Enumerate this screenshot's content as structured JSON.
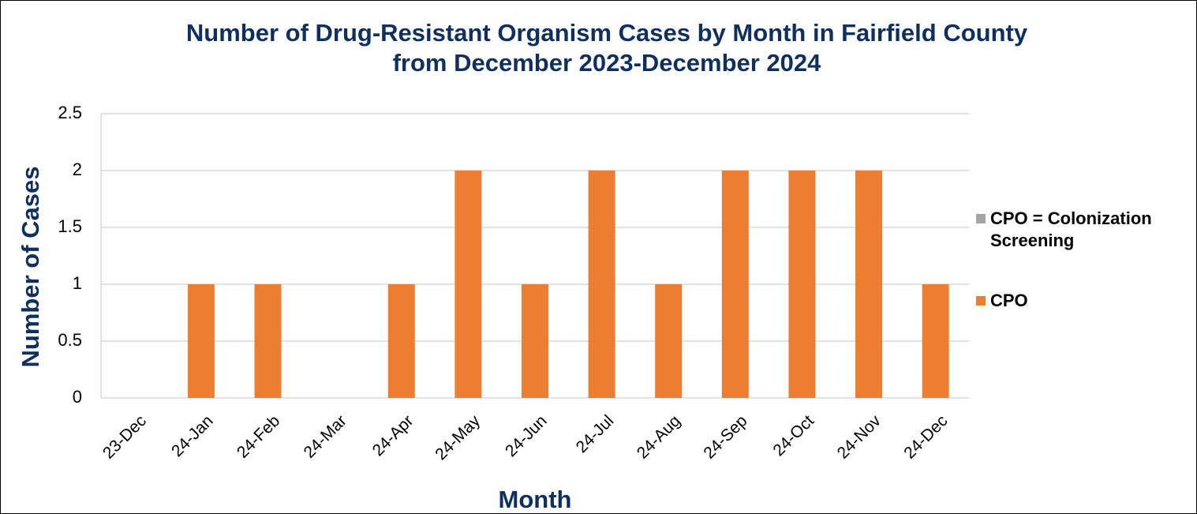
{
  "chart_data": {
    "type": "stacked_bar",
    "title": "Number of Drug-Resistant Organism Cases by Month in Fairfield County from December 2023-December 2024",
    "x_label": "Month",
    "y_label": "Number of Cases",
    "categories": [
      "23-Dec",
      "24-Jan",
      "24-Feb",
      "24-Mar",
      "24-Apr",
      "24-May",
      "24-Jun",
      "24-Jul",
      "24-Aug",
      "24-Sep",
      "24-Oct",
      "24-Nov",
      "24-Dec"
    ],
    "series": [
      {
        "name": "CPO",
        "color": "#ed7d31",
        "values": [
          0,
          1,
          1,
          0,
          1,
          2,
          1,
          2,
          1,
          2,
          2,
          2,
          1
        ]
      },
      {
        "name": "CPO = Colonization Screening",
        "color": "#a5a5a5",
        "values": [
          0,
          0,
          0,
          0,
          0,
          0,
          0,
          0,
          0,
          0,
          0,
          0,
          0
        ]
      }
    ],
    "ylim": [
      0,
      2.5
    ],
    "yticks": [
      0,
      0.5,
      1,
      1.5,
      2,
      2.5
    ],
    "grid": true,
    "legend": "right"
  }
}
